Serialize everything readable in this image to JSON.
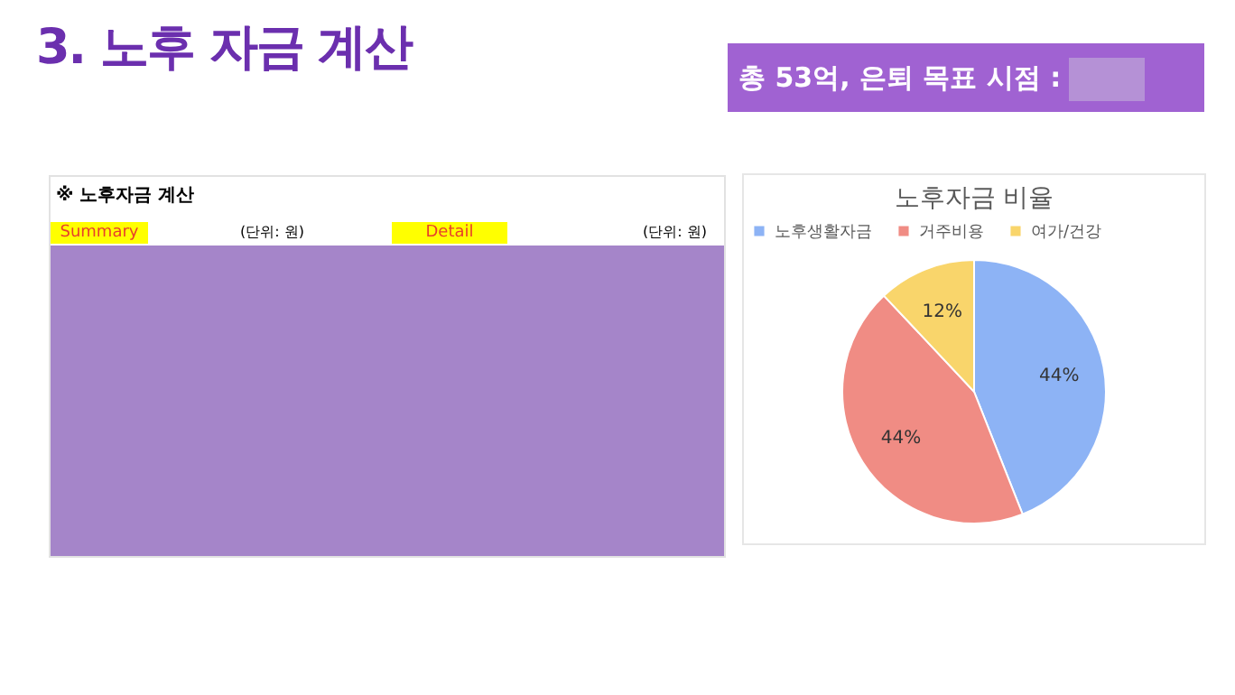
{
  "chart_data": [
    {
      "type": "other",
      "title": "3. 노후 자금 계산",
      "subtitle": "총 53억, 은퇴 목표 시점 :",
      "annotations": [
        "※ 노후자금 계산",
        "Summary",
        "(단위: 원)",
        "Detail",
        "(단위: 원)"
      ]
    },
    {
      "type": "pie",
      "title": "노후자금 비율",
      "categories": [
        "노후생활자금",
        "거주비용",
        "여가/건강"
      ],
      "values": [
        44,
        44,
        12
      ],
      "colors": [
        "#8db3f5",
        "#f08c84",
        "#f9d56b"
      ],
      "value_labels": [
        "44%",
        "44%",
        "12%"
      ],
      "legend": "top"
    }
  ]
}
